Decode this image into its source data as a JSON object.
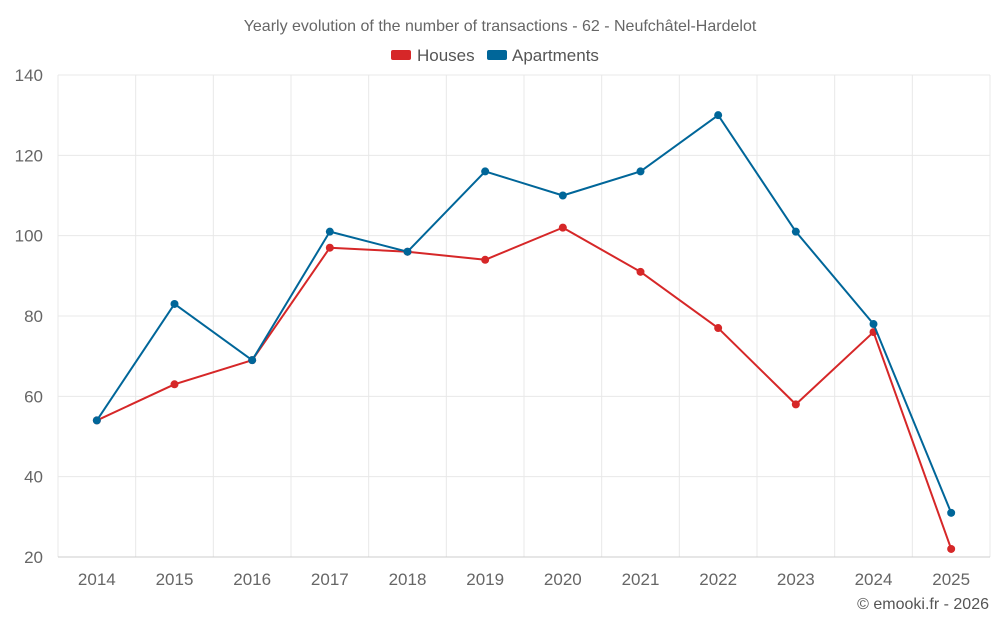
{
  "chart_data": {
    "type": "line",
    "title": "Yearly evolution of the number of transactions - 62 - Neufchâtel-Hardelot",
    "categories": [
      "2014",
      "2015",
      "2016",
      "2017",
      "2018",
      "2019",
      "2020",
      "2021",
      "2022",
      "2023",
      "2024",
      "2025"
    ],
    "series": [
      {
        "name": "Houses",
        "color": "#d62728",
        "values": [
          54,
          63,
          69,
          97,
          96,
          94,
          102,
          91,
          77,
          58,
          76,
          22
        ]
      },
      {
        "name": "Apartments",
        "color": "#006699",
        "values": [
          54,
          83,
          69,
          101,
          96,
          116,
          110,
          116,
          130,
          101,
          78,
          31
        ]
      }
    ],
    "ylim": [
      20,
      140
    ],
    "yticks": [
      "20",
      "40",
      "60",
      "80",
      "100",
      "120",
      "140"
    ],
    "xlabel": "",
    "ylabel": "",
    "grid": true,
    "legend_position": "top-center"
  },
  "credit": "© emooki.fr - 2026"
}
